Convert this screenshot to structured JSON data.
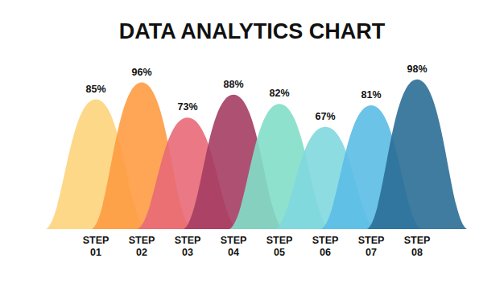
{
  "chart_data": {
    "type": "bar",
    "title": "DATA ANALYTICS CHART",
    "categories": [
      "STEP 01",
      "STEP 02",
      "STEP 03",
      "STEP 04",
      "STEP 05",
      "STEP 06",
      "STEP 07",
      "STEP 08"
    ],
    "values": [
      85,
      96,
      73,
      88,
      82,
      67,
      81,
      98
    ],
    "value_labels": [
      "85%",
      "96%",
      "73%",
      "88%",
      "82%",
      "67%",
      "81%",
      "98%"
    ],
    "colors": [
      "#fdd47c",
      "#fe9c42",
      "#e86a78",
      "#a53d63",
      "#82dec8",
      "#80d8df",
      "#5bbde6",
      "#2b6e96"
    ],
    "ylim": [
      0,
      100
    ],
    "data_labels": true,
    "tick_labels": "x"
  }
}
